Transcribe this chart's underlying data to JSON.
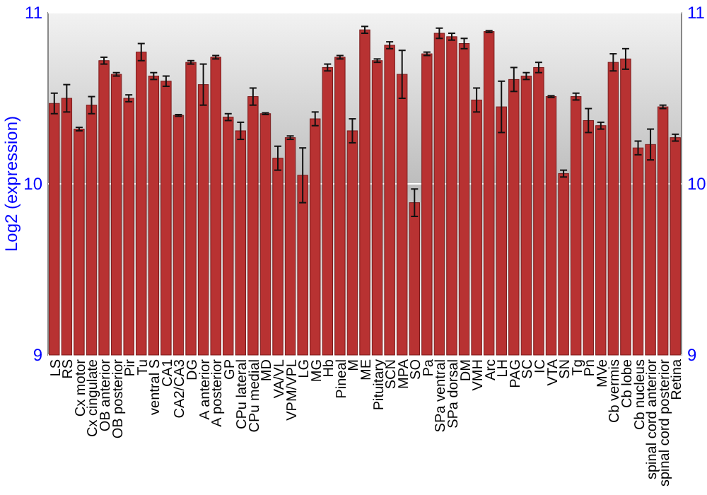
{
  "chart_data": {
    "type": "bar",
    "ylabel": "Log2 (expression)",
    "categories": [
      "LS",
      "RS",
      "Cx motor",
      "Cx cingulate",
      "OB anterior",
      "OB posterior",
      "Pir",
      "Tu",
      "ventral S",
      "CA1",
      "CA2/CA3",
      "DG",
      "A anterior",
      "A posterior",
      "GP",
      "CPu lateral",
      "CPu medial",
      "MD",
      "VA/VL",
      "VPM/VPL",
      "LG",
      "MG",
      "Hb",
      "Pineal",
      "M",
      "ME",
      "Pituitary",
      "SCN",
      "MPA",
      "SO",
      "Pa",
      "SPa ventral",
      "SPa dorsal",
      "DM",
      "VMH",
      "Arc",
      "LH",
      "PAG",
      "SC",
      "IC",
      "VTA",
      "SN",
      "Tg",
      "Pn",
      "MVe",
      "Cb vermis",
      "Cb lobe",
      "Cb nucleus",
      "spinal cord anterior",
      "spinal cord posterior",
      "Retina"
    ],
    "values": [
      10.47,
      10.5,
      10.32,
      10.46,
      10.72,
      10.64,
      10.5,
      10.77,
      10.63,
      10.6,
      10.4,
      10.71,
      10.58,
      10.74,
      10.39,
      10.31,
      10.51,
      10.41,
      10.15,
      10.27,
      10.05,
      10.38,
      10.68,
      10.74,
      10.31,
      10.9,
      10.72,
      10.81,
      10.64,
      9.89,
      10.76,
      10.88,
      10.86,
      10.82,
      10.49,
      10.89,
      10.45,
      10.61,
      10.63,
      10.68,
      10.51,
      10.06,
      10.51,
      10.37,
      10.34,
      10.71,
      10.73,
      10.21,
      10.23,
      10.45,
      10.27
    ],
    "errors": [
      0.06,
      0.08,
      0.01,
      0.05,
      0.02,
      0.01,
      0.02,
      0.05,
      0.02,
      0.03,
      0.005,
      0.01,
      0.12,
      0.01,
      0.02,
      0.05,
      0.05,
      0.005,
      0.07,
      0.01,
      0.16,
      0.04,
      0.02,
      0.01,
      0.07,
      0.02,
      0.01,
      0.02,
      0.14,
      0.08,
      0.01,
      0.03,
      0.02,
      0.03,
      0.07,
      0.005,
      0.15,
      0.07,
      0.02,
      0.03,
      0.005,
      0.02,
      0.02,
      0.07,
      0.02,
      0.05,
      0.06,
      0.04,
      0.09,
      0.01,
      0.02
    ],
    "color": "#b83232",
    "ylim": [
      9,
      11
    ],
    "yticks": [
      9,
      10,
      11
    ],
    "y2lim": [
      9,
      11
    ],
    "y2ticks": [
      9,
      10,
      11
    ],
    "grid": "y"
  }
}
